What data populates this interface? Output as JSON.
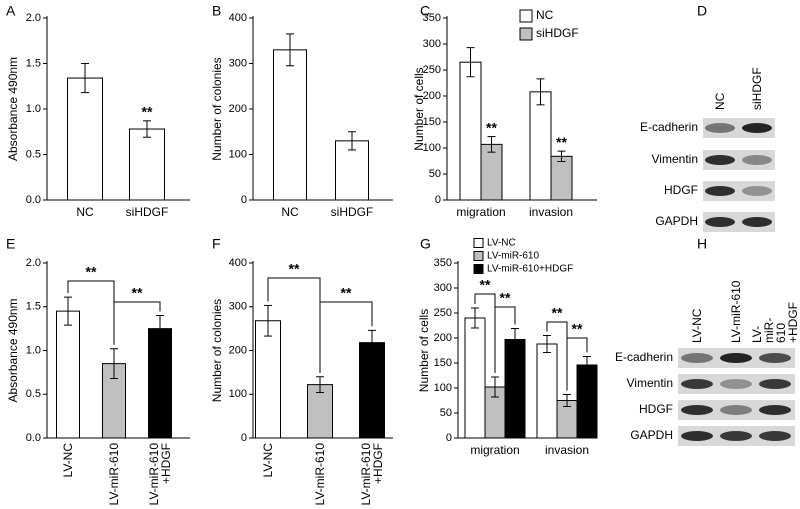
{
  "chart_data": [
    {
      "type": "bar",
      "panel_label": "A",
      "ylabel": "Absorbance 490nm",
      "categories": [
        "NC",
        "siHDGF"
      ],
      "series": [
        {
          "color": "#ffffff",
          "values": [
            1.34,
            0.78
          ],
          "errors": [
            0.16,
            0.09
          ]
        }
      ],
      "ylim": [
        0,
        2
      ],
      "yticks": [
        {
          "value": 0,
          "label": "0.0"
        },
        0.5,
        {
          "value": 1,
          "label": "1.0"
        },
        1.5,
        {
          "value": 2,
          "label": "2.0"
        }
      ],
      "annotations": [
        "**"
      ]
    },
    {
      "type": "bar",
      "panel_label": "B",
      "ylabel": "Number of colonies",
      "categories": [
        "NC",
        "siHDGF"
      ],
      "series": [
        {
          "color": "#ffffff",
          "values": [
            330,
            130
          ],
          "errors": [
            35,
            20
          ]
        }
      ],
      "ylim": [
        0,
        400
      ],
      "yticks": [
        0,
        100,
        200,
        300,
        400
      ],
      "annotations": []
    },
    {
      "type": "bar",
      "panel_label": "C",
      "ylabel": "Number of cells",
      "categories": [
        "migration",
        "invasion"
      ],
      "series": [
        {
          "name": "NC",
          "color": "#ffffff",
          "values": [
            265,
            208
          ],
          "errors": [
            28,
            25
          ]
        },
        {
          "name": "siHDGF",
          "color": "#c0c0c0",
          "values": [
            107,
            84
          ],
          "errors": [
            15,
            10
          ]
        }
      ],
      "ylim": [
        0,
        350
      ],
      "yticks": [
        0,
        50,
        100,
        150,
        200,
        250,
        300,
        350
      ],
      "annotations": [
        "**",
        "**"
      ]
    },
    {
      "type": "bar",
      "panel_label": "E",
      "ylabel": "Absorbance 490nm",
      "categories": [
        "LV-NC",
        "LV-miR-610",
        "LV-miR-610\n+HDGF"
      ],
      "series": [
        {
          "colors": [
            "#ffffff",
            "#c0c0c0",
            "#000000"
          ],
          "values": [
            1.45,
            0.85,
            1.25
          ],
          "errors": [
            0.16,
            0.17,
            0.15
          ]
        }
      ],
      "ylim": [
        0,
        2
      ],
      "yticks": [
        {
          "value": 0,
          "label": "0.0"
        },
        0.5,
        {
          "value": 1,
          "label": "1.0"
        },
        1.5,
        {
          "value": 2,
          "label": "2.0"
        }
      ],
      "annotations": [
        "**",
        "**"
      ]
    },
    {
      "type": "bar",
      "panel_label": "F",
      "ylabel": "Number of colonies",
      "categories": [
        "LV-NC",
        "LV-miR-610",
        "LV-miR-610\n+HDGF"
      ],
      "series": [
        {
          "colors": [
            "#ffffff",
            "#c0c0c0",
            "#000000"
          ],
          "values": [
            268,
            122,
            218
          ],
          "errors": [
            35,
            18,
            28
          ]
        }
      ],
      "ylim": [
        0,
        400
      ],
      "yticks": [
        0,
        100,
        200,
        300,
        400
      ],
      "annotations": [
        "**",
        "**"
      ]
    },
    {
      "type": "bar",
      "panel_label": "G",
      "ylabel": "Number of cells",
      "categories": [
        "migration",
        "invasion"
      ],
      "series": [
        {
          "name": "LV-NC",
          "color": "#ffffff",
          "values": [
            240,
            188
          ],
          "errors": [
            20,
            17
          ]
        },
        {
          "name": "LV-miR-610",
          "color": "#c0c0c0",
          "values": [
            102,
            75
          ],
          "errors": [
            20,
            12
          ]
        },
        {
          "name": "LV-miR-610+HDGF",
          "color": "#000000",
          "values": [
            197,
            146
          ],
          "errors": [
            22,
            17
          ]
        }
      ],
      "ylim": [
        0,
        350
      ],
      "yticks": [
        0,
        50,
        100,
        150,
        200,
        250,
        300,
        350
      ],
      "annotations": [
        "**",
        "**",
        "**",
        "**"
      ]
    }
  ],
  "blots": [
    {
      "panel_label": "D",
      "lanes": [
        "NC",
        "siHDGF"
      ],
      "proteins": [
        "E-cadherin",
        "Vimentin",
        "HDGF",
        "GAPDH"
      ]
    },
    {
      "panel_label": "H",
      "lanes": [
        "LV-NC",
        "LV-miR-610",
        "LV-miR-610\n+HDGF"
      ],
      "proteins": [
        "E-cadherin",
        "Vimentin",
        "HDGF",
        "GAPDH"
      ]
    }
  ]
}
